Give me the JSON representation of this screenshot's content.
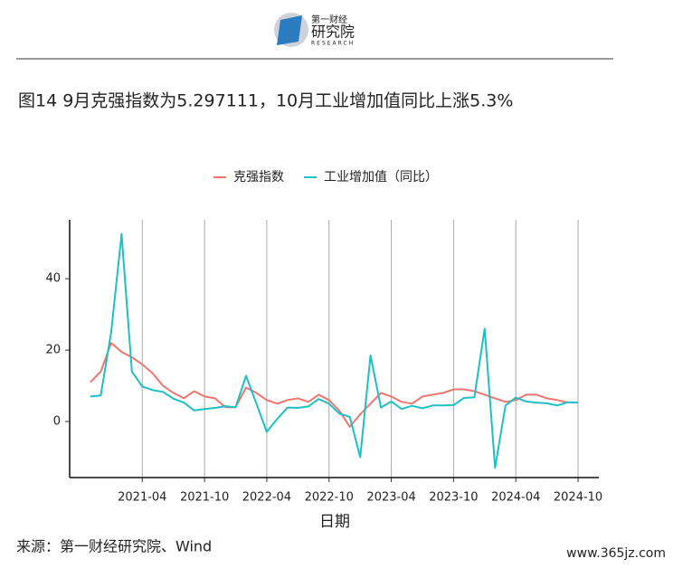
{
  "logo": {
    "brand": "第一财经",
    "name": "研究院",
    "english": "RESEARCH"
  },
  "chart_data": {
    "type": "line",
    "title": "图14 9月克强指数为5.297111，10月工业增加值同比上涨5.3%",
    "x_label": "日期",
    "x": [
      "2020-11",
      "2020-12",
      "2021-01",
      "2021-02",
      "2021-03",
      "2021-04",
      "2021-05",
      "2021-06",
      "2021-07",
      "2021-08",
      "2021-09",
      "2021-10",
      "2021-11",
      "2021-12",
      "2022-01",
      "2022-02",
      "2022-03",
      "2022-04",
      "2022-05",
      "2022-06",
      "2022-07",
      "2022-08",
      "2022-09",
      "2022-10",
      "2022-11",
      "2022-12",
      "2023-01",
      "2023-02",
      "2023-03",
      "2023-04",
      "2023-05",
      "2023-06",
      "2023-07",
      "2023-08",
      "2023-09",
      "2023-10",
      "2023-11",
      "2023-12",
      "2024-01",
      "2024-02",
      "2024-03",
      "2024-04",
      "2024-05",
      "2024-06",
      "2024-07",
      "2024-08",
      "2024-09",
      "2024-10"
    ],
    "series": [
      {
        "name": "克强指数",
        "color": "#f0766d",
        "values": [
          11,
          14,
          22,
          19.5,
          18,
          16,
          13.5,
          10,
          8,
          6.5,
          8.5,
          7,
          6.5,
          4,
          4,
          9.5,
          8,
          6,
          5,
          6,
          6.5,
          5.5,
          7.5,
          6,
          3,
          -1.5,
          2,
          5,
          8,
          7,
          5.5,
          5,
          7,
          7.5,
          8,
          9,
          9,
          8.5,
          7.5,
          6.5,
          5.5,
          6,
          7.5,
          7.5,
          6.5,
          6,
          5.3,
          null
        ]
      },
      {
        "name": "工业增加值（同比）",
        "color": "#1fbfc4",
        "values": [
          7,
          7.3,
          25,
          52.5,
          14,
          9.8,
          8.8,
          8.3,
          6.4,
          5.3,
          3.1,
          3.5,
          3.8,
          4.3,
          4,
          12.8,
          5,
          -2.9,
          0.7,
          3.9,
          3.8,
          4.2,
          6.3,
          5,
          2.2,
          1.3,
          -10,
          18.5,
          3.9,
          5.6,
          3.5,
          4.4,
          3.7,
          4.5,
          4.5,
          4.6,
          6.6,
          6.8,
          26,
          -13,
          4.5,
          6.7,
          5.6,
          5.3,
          5.1,
          4.5,
          5.4,
          5.3
        ]
      }
    ],
    "xlim": [
      "2020-09",
      "2024-12"
    ],
    "xticks": [
      "2021-04",
      "2021-10",
      "2022-04",
      "2022-10",
      "2023-04",
      "2023-10",
      "2024-04",
      "2024-10"
    ],
    "ylim": [
      -15.7,
      56.5
    ],
    "yticks": [
      0,
      20,
      40
    ],
    "grid": "x",
    "legend": "top"
  },
  "source": "来源：第一财经研究院、Wind",
  "watermark": "www.365jz.com"
}
